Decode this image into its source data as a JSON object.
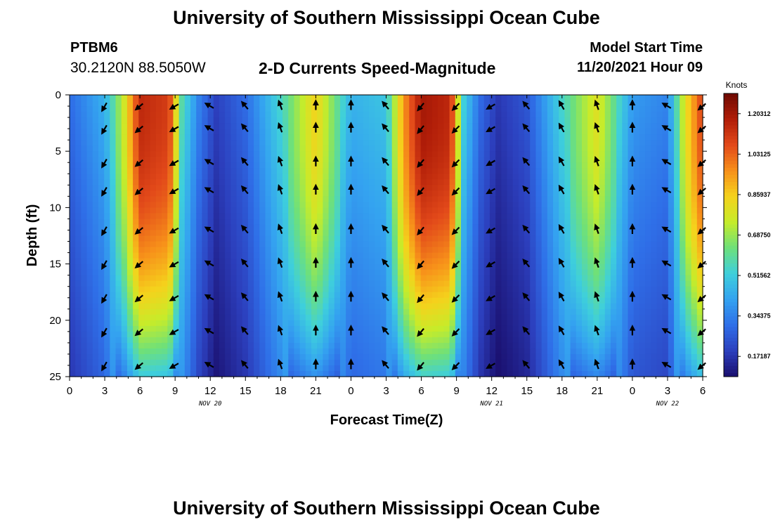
{
  "header": {
    "title": "University of Southern Mississippi Ocean Cube",
    "station_id": "PTBM6",
    "station_coords": "30.2120N  88.5050W",
    "subtitle": "2-D Currents Speed-Magnitude",
    "model_start_label": "Model Start Time",
    "model_start_value": "11/20/2021 Hour 09"
  },
  "footer": {
    "title": "University of Southern Mississippi Ocean Cube"
  },
  "chart_data": {
    "type": "heatmap",
    "title": "2-D Currents Speed-Magnitude",
    "xlabel": "Forecast Time(Z)",
    "ylabel": "Depth (ft)",
    "x_hours_range": [
      0,
      54
    ],
    "x_tick_labels": [
      "0",
      "3",
      "6",
      "9",
      "12",
      "15",
      "18",
      "21",
      "0",
      "3",
      "6",
      "9",
      "12",
      "15",
      "18",
      "21",
      "0",
      "3",
      "6"
    ],
    "date_labels": [
      {
        "hour": 12,
        "text": "NOV 20"
      },
      {
        "hour": 36,
        "text": "NOV 21"
      },
      {
        "hour": 51,
        "text": "NOV 22"
      }
    ],
    "ylim": [
      0,
      25
    ],
    "y_ticks": [
      0,
      5,
      10,
      15,
      20,
      25
    ],
    "colorbar": {
      "label": "Knots",
      "min": 0.0859,
      "max": 1.289,
      "tick_labels": [
        "0.17187",
        "0.34375",
        "0.51562",
        "0.68750",
        "0.85937",
        "1.03125",
        "1.20312"
      ],
      "tick_values": [
        0.17187,
        0.34375,
        0.51562,
        0.6875,
        0.85937,
        1.03125,
        1.20312
      ],
      "colors": [
        "#1a0f6e",
        "#2c3fbd",
        "#2f6fe8",
        "#34a3f0",
        "#3ecfdc",
        "#6ee07a",
        "#c6ec2a",
        "#f5d21c",
        "#f7901a",
        "#e2491a",
        "#b01d08",
        "#6e0a02"
      ]
    },
    "speed_profile_hours": [
      0,
      3,
      4.6,
      6,
      8.5,
      9.5,
      11,
      12.5,
      15,
      18,
      21,
      24,
      27,
      28.5,
      30,
      32.5,
      33.5,
      35,
      36.5,
      39,
      42,
      45,
      48,
      51,
      52.5,
      54
    ],
    "speed_profile_knots": [
      0.3,
      0.45,
      0.75,
      1.15,
      1.1,
      0.6,
      0.35,
      0.2,
      0.3,
      0.55,
      0.85,
      0.45,
      0.5,
      0.95,
      1.2,
      1.15,
      0.55,
      0.3,
      0.18,
      0.25,
      0.55,
      0.8,
      0.4,
      0.35,
      0.8,
      1.1
    ],
    "arrow_hours": [
      3,
      6,
      9,
      12,
      15,
      18,
      21,
      24,
      27,
      30,
      33,
      36,
      39,
      42,
      45,
      48,
      51,
      54
    ],
    "arrow_depths_ft": [
      1,
      3,
      6,
      8.5,
      12,
      15,
      18,
      21,
      24
    ],
    "arrow_directions_deg": [
      210,
      230,
      240,
      300,
      320,
      340,
      0,
      0,
      320,
      220,
      225,
      240,
      320,
      330,
      340,
      0,
      300,
      230
    ]
  }
}
